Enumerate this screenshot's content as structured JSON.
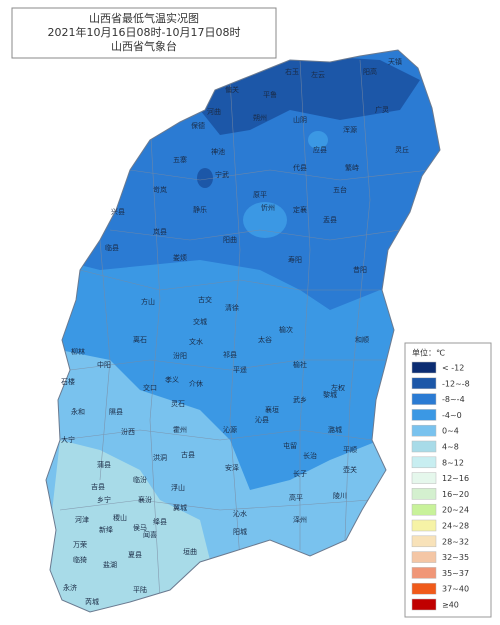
{
  "header": {
    "title": "山西省最低气温实况图",
    "period": "2021年10月16日08时-10月17日08时",
    "source": "山西省气象台"
  },
  "legend": {
    "title": "单位：℃",
    "items": [
      {
        "label": "< -12",
        "color": "#0b2c72"
      },
      {
        "label": "-12~-8",
        "color": "#1c57a8"
      },
      {
        "label": "-8~-4",
        "color": "#2b7bd3"
      },
      {
        "label": "-4~0",
        "color": "#3b98e4"
      },
      {
        "label": "0~4",
        "color": "#79c2ee"
      },
      {
        "label": "4~8",
        "color": "#a8dbe8"
      },
      {
        "label": "8~12",
        "color": "#c8eef1"
      },
      {
        "label": "12~16",
        "color": "#e5f7ec"
      },
      {
        "label": "16~20",
        "color": "#d4f0cf"
      },
      {
        "label": "20~24",
        "color": "#c8f29a"
      },
      {
        "label": "24~28",
        "color": "#f6f3a6"
      },
      {
        "label": "28~32",
        "color": "#f8e2b9"
      },
      {
        "label": "32~35",
        "color": "#f4c6a5"
      },
      {
        "label": "35~37",
        "color": "#f09677"
      },
      {
        "label": "37~40",
        "color": "#f05a1a"
      },
      {
        "label": "≥40",
        "color": "#c00000"
      }
    ]
  },
  "labels": [
    "天镇",
    "阳高",
    "左云",
    "右玉",
    "平鲁",
    "偏关",
    "河曲",
    "保德",
    "朔州",
    "山阴",
    "应县",
    "浑源",
    "广灵",
    "灵丘",
    "神池",
    "五寨",
    "宁武",
    "代县",
    "繁峙",
    "岢岚",
    "原平",
    "五台",
    "静乐",
    "忻州",
    "定襄",
    "兴县",
    "岚县",
    "盂县",
    "阳曲",
    "娄烦",
    "临县",
    "方山",
    "古交",
    "寿阳",
    "昔阳",
    "离石",
    "交城",
    "清徐",
    "榆次",
    "和顺",
    "柳林",
    "中阳",
    "文水",
    "太谷",
    "左权",
    "汾阳",
    "平遥",
    "祁县",
    "榆社",
    "石楼",
    "交口",
    "孝义",
    "介休",
    "武乡",
    "永和",
    "隰县",
    "灵石",
    "沁县",
    "黎城",
    "大宁",
    "汾西",
    "霍州",
    "沁源",
    "襄垣",
    "潞城",
    "蒲县",
    "洪洞",
    "古县",
    "屯留",
    "平顺",
    "吉县",
    "临汾",
    "浮山",
    "安泽",
    "长治",
    "壶关",
    "乡宁",
    "襄汾",
    "长子",
    "高平",
    "陵川",
    "河津",
    "稷山",
    "新绛",
    "侯马",
    "翼城",
    "沁水",
    "阳城",
    "泽州",
    "万荣",
    "闻喜",
    "绛县",
    "临猗",
    "盐湖",
    "夏县",
    "垣曲",
    "永济",
    "芮城",
    "平陆"
  ]
}
